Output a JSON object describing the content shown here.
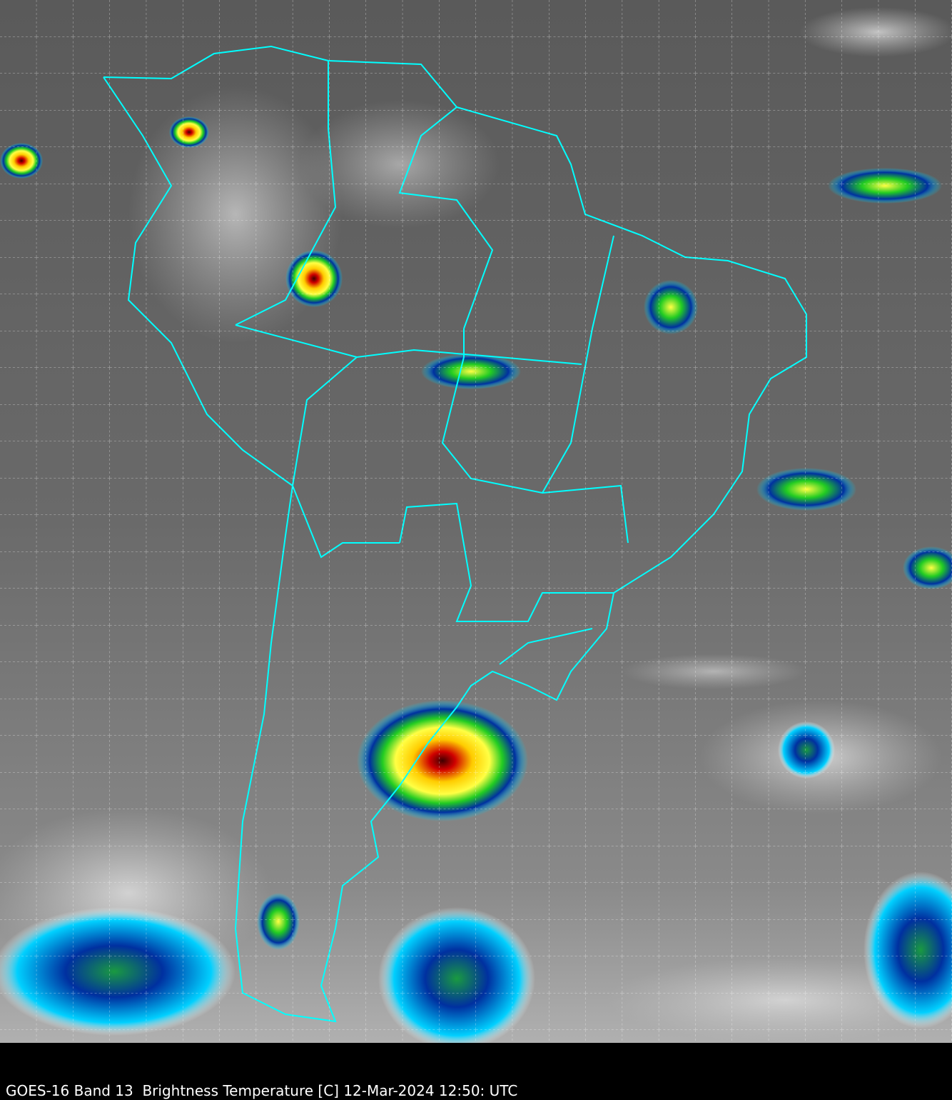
{
  "caption": "GOES-16 Band 13  Brightness Temperature [C] 12-Mar-2024 12:50: UTC",
  "colors": {
    "background": "#000000",
    "coastline": "#00ffff",
    "grid": "#ffffff",
    "cold_top_red": "#c00000",
    "cold_top_yellow": "#ffff00",
    "cold_top_green": "#22cc22",
    "cold_top_blue": "#0030a0",
    "cold_cyan": "#00e0ff"
  },
  "legend": {
    "layer": "Brightness Temperature",
    "units": "C"
  }
}
